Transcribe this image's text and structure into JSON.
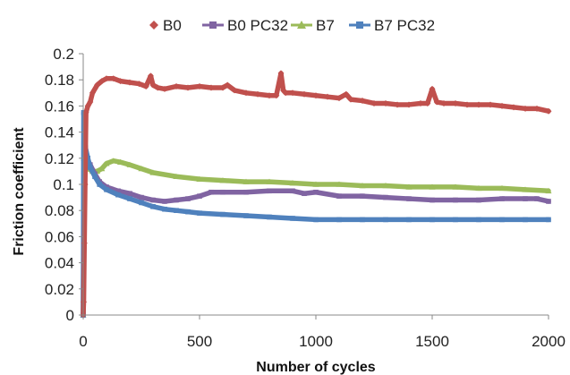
{
  "chart_data": {
    "type": "line",
    "title": "",
    "xlabel": "Number of cycles",
    "ylabel": "Friction coefficient",
    "xlim": [
      0,
      2000
    ],
    "ylim": [
      0,
      0.2
    ],
    "x_ticks": [
      "0",
      "500",
      "1000",
      "1500",
      "2000"
    ],
    "y_ticks": [
      "0",
      "0.02",
      "0.04",
      "0.06",
      "0.08",
      "0.1",
      "0.12",
      "0.14",
      "0.16",
      "0.18",
      "0.2"
    ],
    "grid": false,
    "legend_position": "top",
    "series": [
      {
        "name": "B0",
        "color": "#C0504D",
        "marker": "diamond",
        "x": [
          0,
          2,
          5,
          8,
          12,
          20,
          30,
          40,
          60,
          80,
          100,
          130,
          160,
          200,
          240,
          270,
          290,
          300,
          320,
          350,
          400,
          450,
          500,
          550,
          600,
          620,
          650,
          700,
          750,
          800,
          830,
          850,
          860,
          870,
          900,
          950,
          1000,
          1050,
          1100,
          1130,
          1150,
          1200,
          1250,
          1300,
          1350,
          1400,
          1450,
          1480,
          1500,
          1520,
          1550,
          1600,
          1650,
          1700,
          1750,
          1800,
          1850,
          1900,
          1950,
          2000
        ],
        "values": [
          0.0,
          0.01,
          0.055,
          0.1,
          0.155,
          0.16,
          0.163,
          0.17,
          0.176,
          0.179,
          0.181,
          0.181,
          0.179,
          0.178,
          0.177,
          0.175,
          0.183,
          0.176,
          0.174,
          0.173,
          0.175,
          0.174,
          0.175,
          0.174,
          0.174,
          0.176,
          0.172,
          0.17,
          0.169,
          0.168,
          0.168,
          0.185,
          0.172,
          0.17,
          0.17,
          0.169,
          0.168,
          0.167,
          0.166,
          0.169,
          0.165,
          0.164,
          0.162,
          0.162,
          0.161,
          0.161,
          0.162,
          0.162,
          0.173,
          0.163,
          0.162,
          0.162,
          0.161,
          0.161,
          0.161,
          0.16,
          0.159,
          0.158,
          0.158,
          0.156
        ]
      },
      {
        "name": "B0 PC32",
        "color": "#8064A2",
        "marker": "square",
        "x": [
          0,
          3,
          6,
          10,
          15,
          30,
          50,
          70,
          100,
          150,
          200,
          250,
          300,
          350,
          400,
          450,
          500,
          550,
          600,
          700,
          800,
          900,
          950,
          1000,
          1100,
          1200,
          1300,
          1400,
          1500,
          1600,
          1700,
          1800,
          1900,
          1950,
          2000
        ],
        "values": [
          0.0,
          0.14,
          0.127,
          0.122,
          0.12,
          0.115,
          0.108,
          0.102,
          0.098,
          0.095,
          0.093,
          0.09,
          0.088,
          0.087,
          0.088,
          0.089,
          0.091,
          0.094,
          0.094,
          0.094,
          0.095,
          0.095,
          0.093,
          0.094,
          0.091,
          0.091,
          0.09,
          0.089,
          0.088,
          0.088,
          0.088,
          0.089,
          0.089,
          0.089,
          0.087
        ]
      },
      {
        "name": "B7",
        "color": "#9BBB59",
        "marker": "triangle",
        "x": [
          0,
          3,
          6,
          10,
          20,
          40,
          60,
          80,
          100,
          130,
          160,
          200,
          250,
          300,
          400,
          500,
          600,
          700,
          800,
          900,
          1000,
          1100,
          1200,
          1300,
          1400,
          1500,
          1600,
          1700,
          1800,
          1900,
          2000
        ],
        "values": [
          0.0,
          0.12,
          0.125,
          0.114,
          0.112,
          0.11,
          0.11,
          0.112,
          0.116,
          0.118,
          0.117,
          0.115,
          0.112,
          0.109,
          0.106,
          0.104,
          0.103,
          0.102,
          0.102,
          0.101,
          0.1,
          0.1,
          0.099,
          0.099,
          0.098,
          0.098,
          0.098,
          0.097,
          0.097,
          0.096,
          0.095
        ]
      },
      {
        "name": "B7 PC32",
        "color": "#4F81BD",
        "marker": "square",
        "x": [
          0,
          2,
          4,
          7,
          10,
          20,
          30,
          50,
          70,
          100,
          150,
          200,
          250,
          300,
          350,
          400,
          450,
          500,
          600,
          700,
          800,
          900,
          1000,
          1100,
          1200,
          1300,
          1400,
          1500,
          1600,
          1700,
          1800,
          1900,
          2000
        ],
        "values": [
          0.0,
          0.155,
          0.143,
          0.135,
          0.128,
          0.12,
          0.113,
          0.106,
          0.1,
          0.096,
          0.092,
          0.089,
          0.086,
          0.083,
          0.081,
          0.08,
          0.079,
          0.078,
          0.077,
          0.076,
          0.075,
          0.074,
          0.073,
          0.073,
          0.073,
          0.073,
          0.073,
          0.073,
          0.073,
          0.073,
          0.073,
          0.073,
          0.073
        ]
      }
    ]
  }
}
